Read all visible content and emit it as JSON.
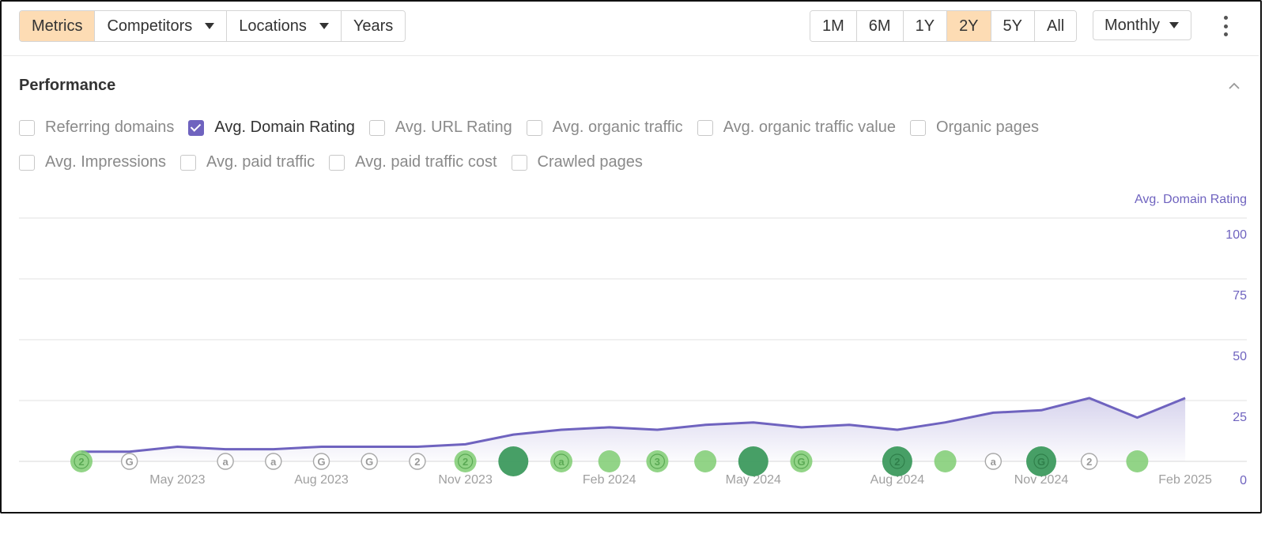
{
  "toolbar": {
    "tabs": [
      {
        "label": "Metrics",
        "active": true,
        "dropdown": false
      },
      {
        "label": "Competitors",
        "active": false,
        "dropdown": true
      },
      {
        "label": "Locations",
        "active": false,
        "dropdown": true
      },
      {
        "label": "Years",
        "active": false,
        "dropdown": false
      }
    ],
    "ranges": [
      {
        "label": "1M",
        "active": false
      },
      {
        "label": "6M",
        "active": false
      },
      {
        "label": "1Y",
        "active": false
      },
      {
        "label": "2Y",
        "active": true
      },
      {
        "label": "5Y",
        "active": false
      },
      {
        "label": "All",
        "active": false
      }
    ],
    "interval": "Monthly",
    "more_icon": "more-vertical-icon"
  },
  "section": {
    "title": "Performance",
    "collapse_icon": "chevron-up-icon"
  },
  "metrics": [
    {
      "label": "Referring domains",
      "checked": false
    },
    {
      "label": "Avg. Domain Rating",
      "checked": true
    },
    {
      "label": "Avg. URL Rating",
      "checked": false
    },
    {
      "label": "Avg. organic traffic",
      "checked": false
    },
    {
      "label": "Avg. organic traffic value",
      "checked": false
    },
    {
      "label": "Organic pages",
      "checked": false
    },
    {
      "label": "Avg. Impressions",
      "checked": false
    },
    {
      "label": "Avg. paid traffic",
      "checked": false
    },
    {
      "label": "Avg. paid traffic cost",
      "checked": false
    },
    {
      "label": "Crawled pages",
      "checked": false
    }
  ],
  "colors": {
    "accent": "#6f63bf",
    "active_button": "#fddcb4",
    "marker_dark": "#3d9a5e",
    "marker_light": "#7fcc72",
    "marker_outline": "#a8a8a8"
  },
  "chart_data": {
    "type": "area",
    "series": [
      {
        "name": "Avg. Domain Rating",
        "color": "#6f63bf",
        "x": [
          "2023-03",
          "2023-04",
          "2023-05",
          "2023-06",
          "2023-07",
          "2023-08",
          "2023-09",
          "2023-10",
          "2023-11",
          "2023-12",
          "2024-01",
          "2024-02",
          "2024-03",
          "2024-04",
          "2024-05",
          "2024-06",
          "2024-07",
          "2024-08",
          "2024-09",
          "2024-10",
          "2024-11",
          "2024-12",
          "2025-01",
          "2025-02"
        ],
        "values": [
          4,
          4,
          6,
          5,
          5,
          6,
          6,
          6,
          7,
          11,
          13,
          14,
          13,
          15,
          16,
          14,
          15,
          13,
          16,
          20,
          21,
          26,
          18,
          26
        ]
      }
    ],
    "x_ticks": [
      "May 2023",
      "Aug 2023",
      "Nov 2023",
      "Feb 2024",
      "May 2024",
      "Aug 2024",
      "Nov 2024",
      "Feb 2025"
    ],
    "y_axis_label": "Avg. Domain Rating",
    "y_ticks": [
      "0",
      "25",
      "50",
      "75",
      "100"
    ],
    "ylim": [
      0,
      100
    ],
    "grid": true,
    "annotations": [
      {
        "date": "2023-03",
        "label": "2",
        "style": "light"
      },
      {
        "date": "2023-04",
        "label": "G",
        "style": "outline"
      },
      {
        "date": "2023-06",
        "label": "a",
        "style": "outline"
      },
      {
        "date": "2023-07",
        "label": "a",
        "style": "outline"
      },
      {
        "date": "2023-08",
        "label": "G",
        "style": "outline"
      },
      {
        "date": "2023-09",
        "label": "G",
        "style": "outline"
      },
      {
        "date": "2023-10",
        "label": "2",
        "style": "outline"
      },
      {
        "date": "2023-11",
        "label": "2",
        "style": "light"
      },
      {
        "date": "2023-12",
        "label": "",
        "style": "dark-large"
      },
      {
        "date": "2024-01",
        "label": "a",
        "style": "light"
      },
      {
        "date": "2024-02",
        "label": "",
        "style": "light"
      },
      {
        "date": "2024-03",
        "label": "3",
        "style": "light"
      },
      {
        "date": "2024-04",
        "label": "",
        "style": "light"
      },
      {
        "date": "2024-05",
        "label": "",
        "style": "dark-large"
      },
      {
        "date": "2024-06",
        "label": "G",
        "style": "light"
      },
      {
        "date": "2024-08",
        "label": "2",
        "style": "dark-large"
      },
      {
        "date": "2024-09",
        "label": "",
        "style": "light"
      },
      {
        "date": "2024-10",
        "label": "a",
        "style": "outline"
      },
      {
        "date": "2024-11",
        "label": "G",
        "style": "dark-large"
      },
      {
        "date": "2024-12",
        "label": "2",
        "style": "outline"
      },
      {
        "date": "2025-01",
        "label": "",
        "style": "light"
      }
    ]
  }
}
